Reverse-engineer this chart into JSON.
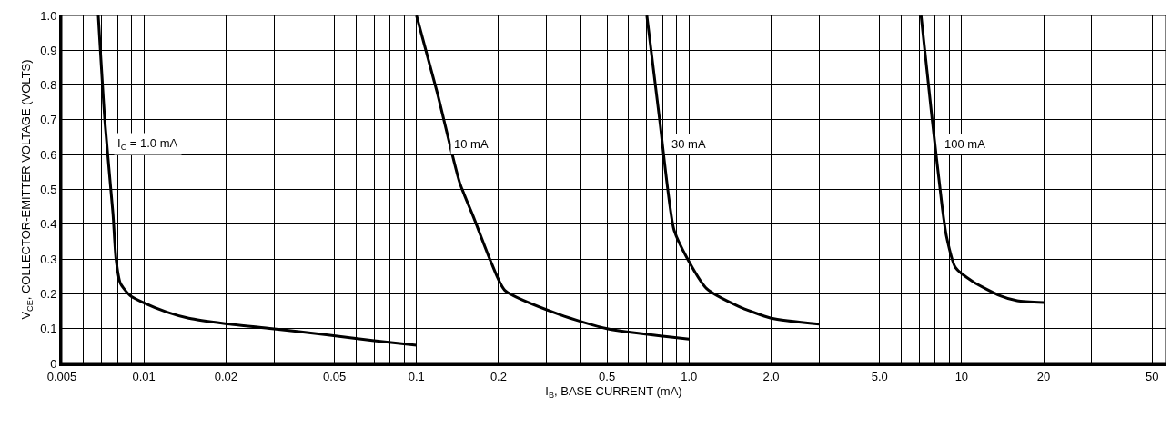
{
  "chart_data": {
    "type": "line",
    "xlabel": "I$_{B}$, BASE CURRENT (mA)",
    "ylabel": "V$_{CE}$, COLLECTOR-EMITTER VOLTAGE (VOLTS)",
    "log": "x",
    "grid": true,
    "marker": "none",
    "line_style": "solid",
    "xlim": [
      0.005,
      56
    ],
    "ylim": [
      0,
      1
    ],
    "xticks": [
      0.005,
      {
        "value": 0.006,
        "label": null
      },
      {
        "value": 0.007,
        "label": null
      },
      {
        "value": 0.008,
        "label": null
      },
      {
        "value": 0.009,
        "label": null
      },
      0.01,
      0.02,
      {
        "value": 0.03,
        "label": null
      },
      {
        "value": 0.04,
        "label": null
      },
      0.05,
      {
        "value": 0.06,
        "label": null
      },
      {
        "value": 0.07,
        "label": null
      },
      {
        "value": 0.08,
        "label": null
      },
      {
        "value": 0.09,
        "label": null
      },
      0.1,
      0.2,
      {
        "value": 0.3,
        "label": null
      },
      {
        "value": 0.4,
        "label": null
      },
      0.5,
      {
        "value": 0.6,
        "label": null
      },
      {
        "value": 0.7,
        "label": null
      },
      {
        "value": 0.8,
        "label": null
      },
      {
        "value": 0.9,
        "label": null
      },
      {
        "value": 1,
        "label": "1.0"
      },
      {
        "value": 2,
        "label": "2.0"
      },
      {
        "value": 3,
        "label": null
      },
      {
        "value": 4,
        "label": null
      },
      {
        "value": 5,
        "label": "5.0"
      },
      {
        "value": 6,
        "label": null
      },
      {
        "value": 7,
        "label": null
      },
      {
        "value": 8,
        "label": null
      },
      {
        "value": 9,
        "label": null
      },
      10,
      20,
      {
        "value": 30,
        "label": null
      },
      {
        "value": 40,
        "label": null
      },
      50
    ],
    "yticks": [
      0,
      0.1,
      0.2,
      0.3,
      0.4,
      0.5,
      0.6,
      0.7,
      0.8,
      0.9,
      {
        "value": 1,
        "label": "1.0"
      }
    ],
    "series": [
      {
        "color": "#000000",
        "x": [
          0.0068,
          0.0072,
          0.0077,
          0.0079,
          0.0082,
          0.0089,
          0.01,
          0.0121,
          0.0146,
          0.0196,
          0.0295,
          0.0467,
          0.07,
          0.1
        ],
        "values": [
          1.0,
          0.69,
          0.43,
          0.3,
          0.23,
          0.195,
          0.174,
          0.148,
          0.13,
          0.115,
          0.1,
          0.082,
          0.065,
          0.052
        ]
      },
      {
        "color": "#000000",
        "x": [
          0.1,
          0.119,
          0.144,
          0.162,
          0.188,
          0.211,
          0.336,
          0.5,
          1.0
        ],
        "values": [
          1.0,
          0.78,
          0.52,
          0.42,
          0.29,
          0.21,
          0.14,
          0.1,
          0.07
        ]
      },
      {
        "color": "#000000",
        "x": [
          0.7,
          0.78,
          0.88,
          0.98,
          1.16,
          1.51,
          2.0,
          3.0
        ],
        "values": [
          1.0,
          0.7,
          0.385,
          0.305,
          0.215,
          0.165,
          0.13,
          0.113
        ]
      },
      {
        "color": "#000000",
        "x": [
          7.1,
          7.8,
          8.5,
          8.8,
          9.5,
          11,
          13.8,
          16,
          20
        ],
        "values": [
          1.0,
          0.7,
          0.445,
          0.365,
          0.275,
          0.235,
          0.195,
          0.18,
          0.175
        ]
      }
    ],
    "annotations": [
      {
        "text": "I$_{C}$ = 1.0 mA",
        "x": 0.0074,
        "y": 0.63
      },
      {
        "text": "10 mA",
        "x": 0.127,
        "y": 0.63
      },
      {
        "text": "30 mA",
        "x": 0.8,
        "y": 0.63
      },
      {
        "text": "100 mA",
        "x": 8.0,
        "y": 0.63
      }
    ]
  }
}
